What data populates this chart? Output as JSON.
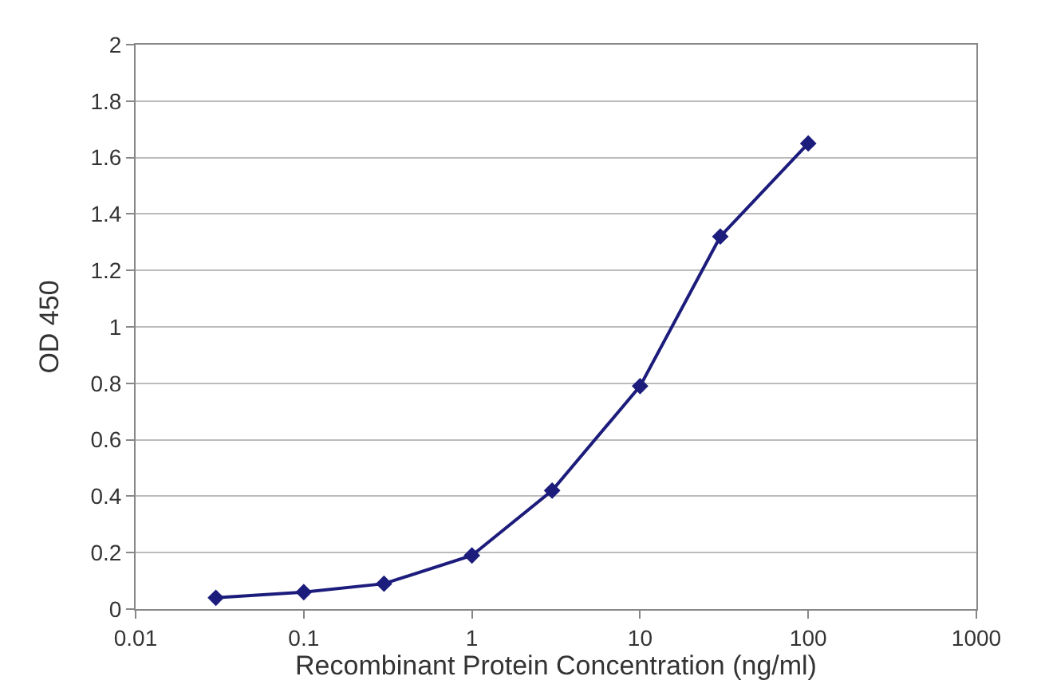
{
  "chart_data": {
    "type": "line",
    "xlabel": "Recombinant Protein Concentration (ng/ml)",
    "ylabel": "OD 450",
    "x": [
      0.03,
      0.1,
      0.3,
      1,
      3,
      10,
      30,
      100
    ],
    "series": [
      {
        "color": "#1c1c7c",
        "values": [
          0.04,
          0.06,
          0.09,
          0.19,
          0.42,
          0.79,
          1.32,
          1.65
        ]
      }
    ],
    "log": "x",
    "xlim": [
      0.01,
      1000
    ],
    "xticks": [
      0.01,
      0.1,
      1,
      10,
      100,
      1000
    ],
    "ylim": [
      0,
      2
    ],
    "yticks": [
      0,
      0.2,
      0.4,
      0.6,
      0.8,
      1,
      1.2,
      1.4,
      1.6,
      1.8,
      2
    ],
    "grid": "y",
    "marker": "diamond",
    "line_style": "solid",
    "legend": false
  }
}
